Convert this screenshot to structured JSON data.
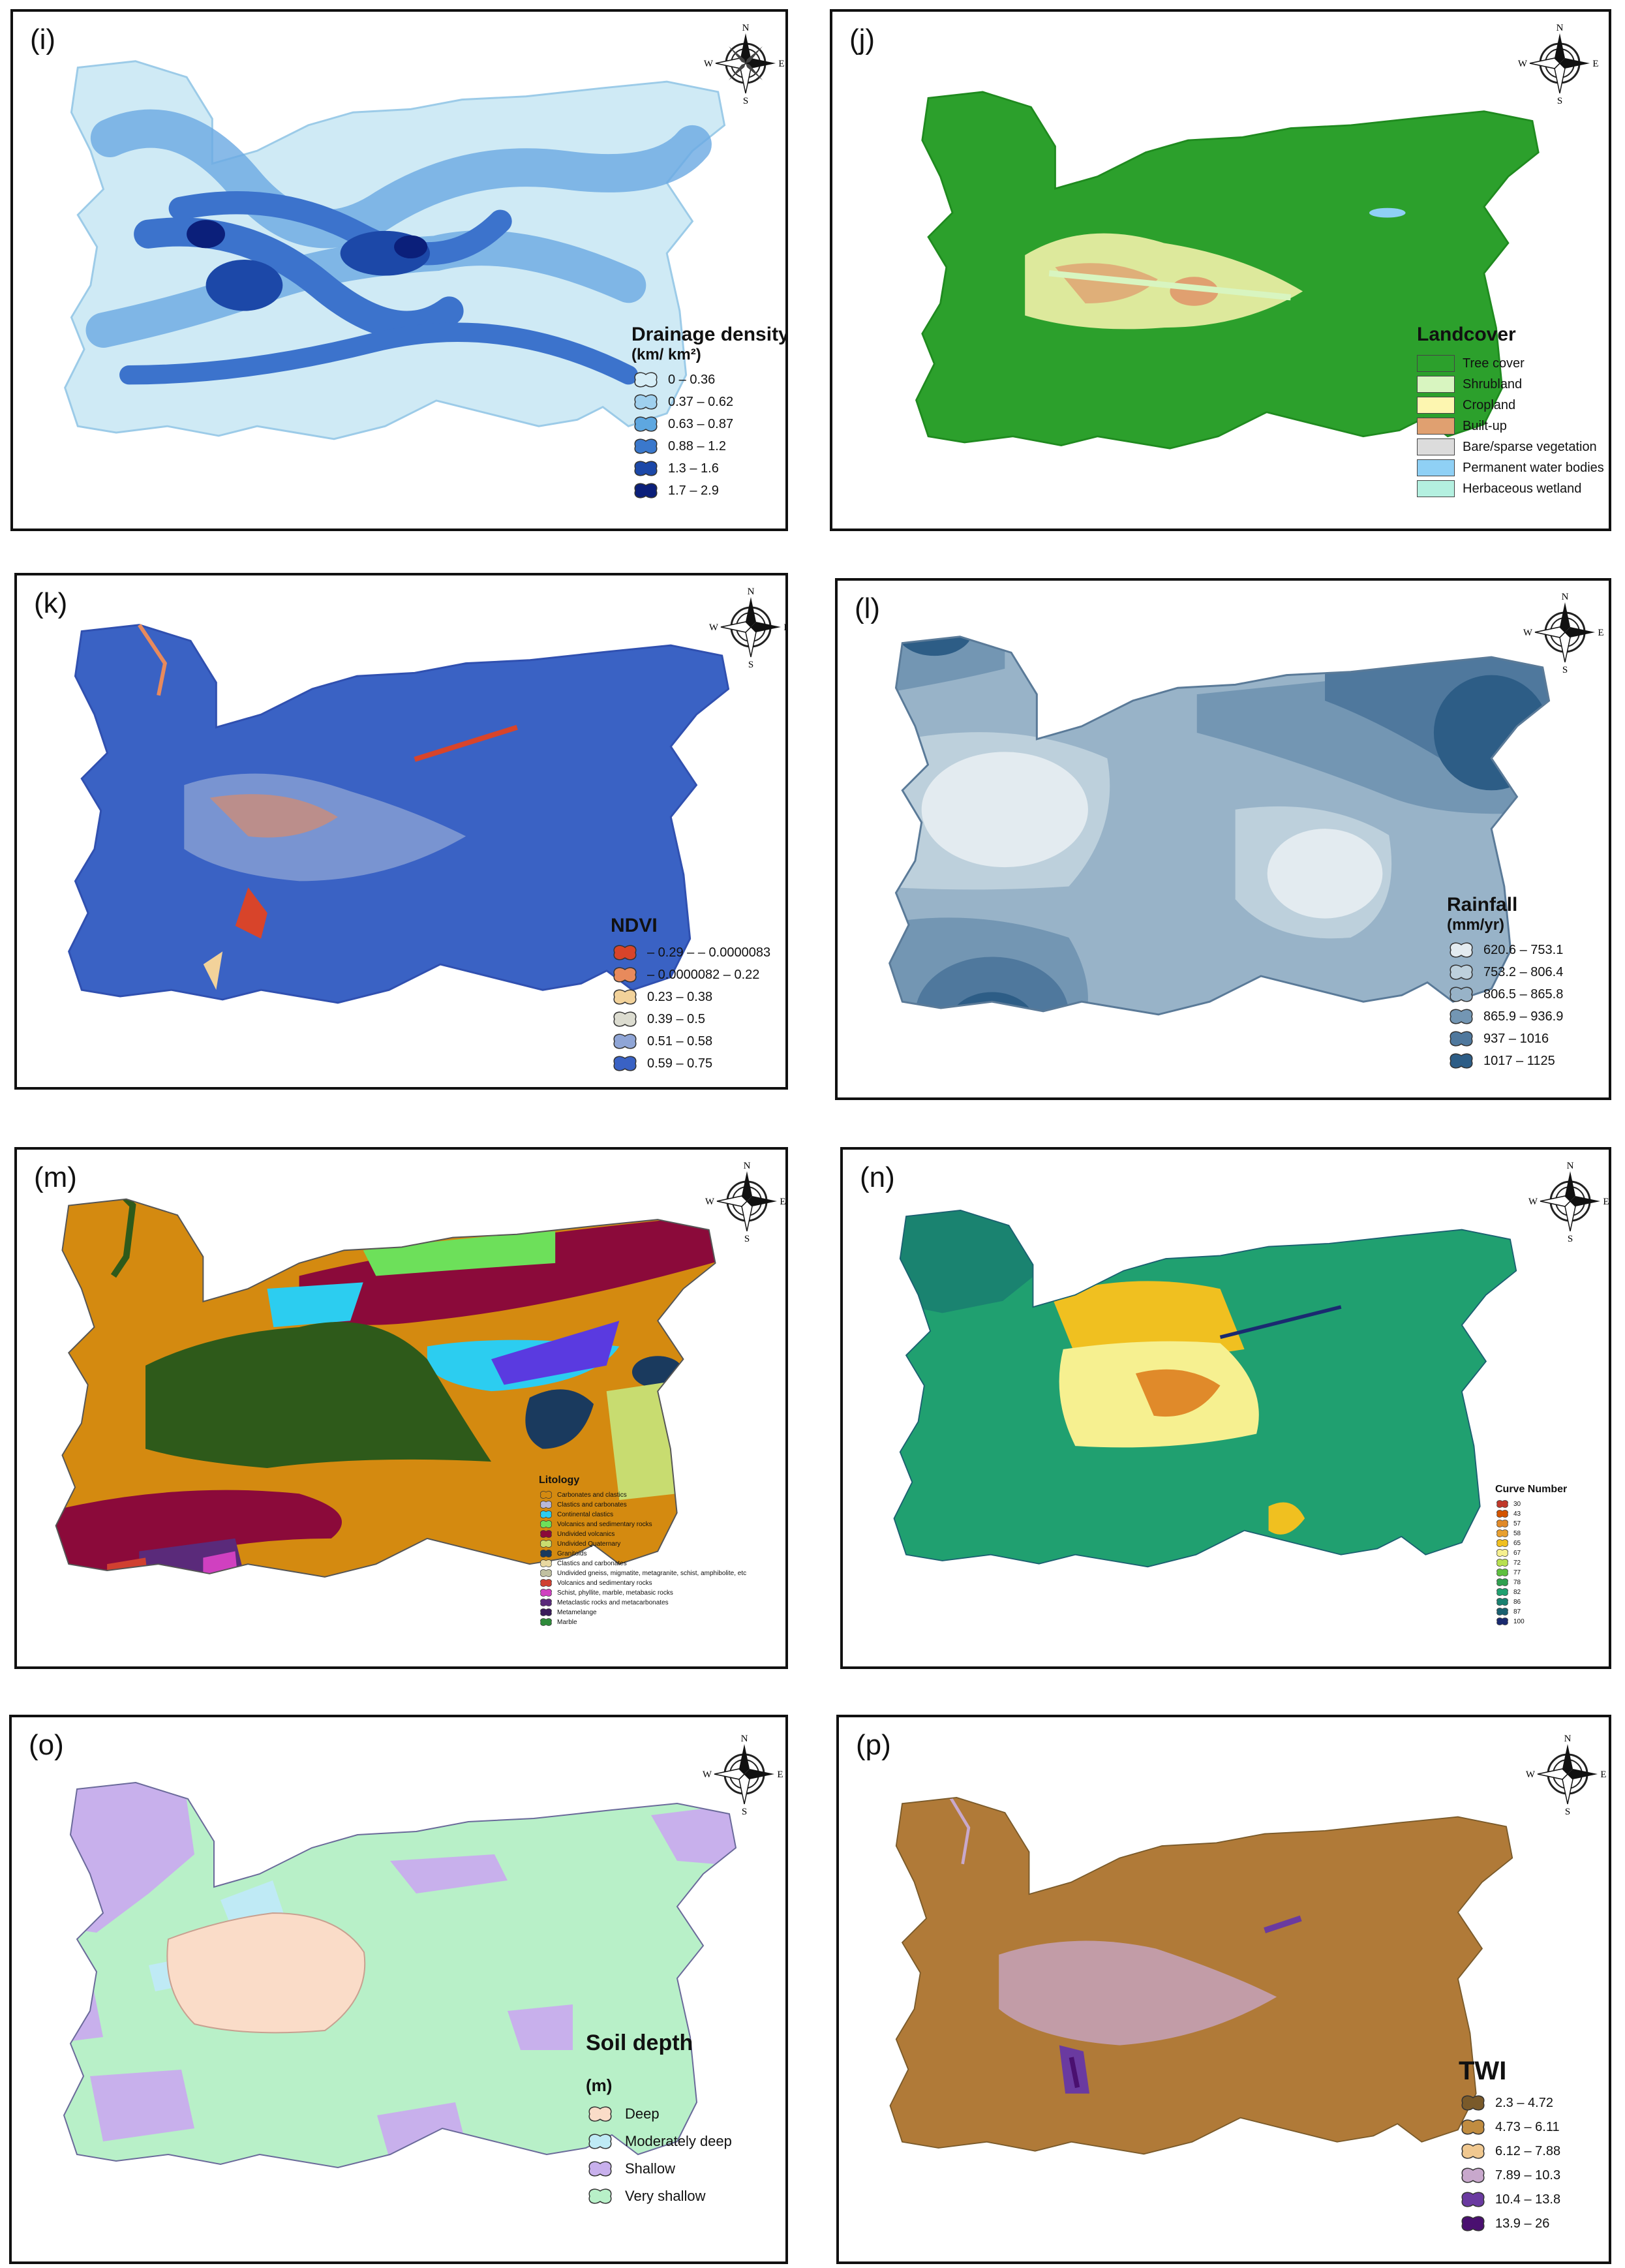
{
  "compass": {
    "n": "N",
    "s": "S",
    "e": "E",
    "w": "W"
  },
  "panels": [
    {
      "tag": "(i)",
      "legend": {
        "title": "Drainage density",
        "unit": "(km/ km²)",
        "items": [
          {
            "label": "0 – 0.36",
            "color": "#d6eef7"
          },
          {
            "label": "0.37 – 0.62",
            "color": "#9fd0ee"
          },
          {
            "label": "0.63 – 0.87",
            "color": "#5ea7e0"
          },
          {
            "label": "0.88 – 1.2",
            "color": "#3a78cc"
          },
          {
            "label": "1.3 – 1.6",
            "color": "#1c48a8"
          },
          {
            "label": "1.7 – 2.9",
            "color": "#0b1f7a"
          }
        ]
      }
    },
    {
      "tag": "(j)",
      "legend": {
        "title": "Landcover",
        "items": [
          {
            "label": "Tree cover",
            "color": "#2ca02c"
          },
          {
            "label": "Shrubland",
            "color": "#d8f5c0"
          },
          {
            "label": "Cropland",
            "color": "#fdf6b0"
          },
          {
            "label": "Built-up",
            "color": "#e0a070"
          },
          {
            "label": "Bare/sparse vegetation",
            "color": "#dcdcdc"
          },
          {
            "label": "Permanent water bodies",
            "color": "#8fd0f5"
          },
          {
            "label": "Herbaceous wetland",
            "color": "#b4f0e0"
          }
        ]
      }
    },
    {
      "tag": "(k)",
      "legend": {
        "title": "NDVI",
        "items": [
          {
            "label": "– 0.29 – – 0.0000083",
            "color": "#d8442a"
          },
          {
            "label": "– 0.0000082 – 0.22",
            "color": "#e88a5c"
          },
          {
            "label": "0.23 – 0.38",
            "color": "#f2d29a"
          },
          {
            "label": "0.39 – 0.5",
            "color": "#dcdcd0"
          },
          {
            "label": "0.51 – 0.58",
            "color": "#8fa5d6"
          },
          {
            "label": "0.59 – 0.75",
            "color": "#3a62c4"
          }
        ]
      }
    },
    {
      "tag": "(l)",
      "legend": {
        "title": "Rainfall",
        "unit": "(mm/yr)",
        "items": [
          {
            "label": "620.6 – 753.1",
            "color": "#e3ebf0"
          },
          {
            "label": "753.2 – 806.4",
            "color": "#bdd0dc"
          },
          {
            "label": "806.5 – 865.8",
            "color": "#98b3c8"
          },
          {
            "label": "865.9 – 936.9",
            "color": "#7396b3"
          },
          {
            "label": "937 – 1016",
            "color": "#4f789d"
          },
          {
            "label": "1017 – 1125",
            "color": "#2d5d86"
          }
        ]
      }
    },
    {
      "tag": "(m)",
      "legend": {
        "title": "Litology",
        "items": [
          {
            "label": "Carbonates and clastics",
            "color": "#d48a10"
          },
          {
            "label": "Clastics and carbonates",
            "color": "#b8b8d8"
          },
          {
            "label": "Continental clastics",
            "color": "#2ccdf0"
          },
          {
            "label": "Volcanics and sedimentary rocks",
            "color": "#6de05a"
          },
          {
            "label": "Undivided volcanics",
            "color": "#8b0a3a"
          },
          {
            "label": "Undivided Quaternary",
            "color": "#c8dc70"
          },
          {
            "label": "Granitoids",
            "color": "#1a3a5e"
          },
          {
            "label": "Clastics and carbonates",
            "color": "#e8d8a0"
          },
          {
            "label": "Undivided gneiss, migmatite, metagranite, schist, amphibolite, etc",
            "color": "#c0c0a0"
          },
          {
            "label": "Volcanics and sedimentary rocks",
            "color": "#d04030"
          },
          {
            "label": "Schist, phyllite, marble, metabasic rocks",
            "color": "#d040c0"
          },
          {
            "label": "Metaclastic rocks and metacarbonates",
            "color": "#5a2a7a"
          },
          {
            "label": "Metamelange",
            "color": "#3a1a5a"
          },
          {
            "label": "Marble",
            "color": "#2e8a3a"
          }
        ]
      }
    },
    {
      "tag": "(n)",
      "legend": {
        "title": "Curve Number",
        "items": [
          {
            "label": "30",
            "color": "#c0392b"
          },
          {
            "label": "43",
            "color": "#d35400"
          },
          {
            "label": "57",
            "color": "#e08a2a"
          },
          {
            "label": "58",
            "color": "#e8a030"
          },
          {
            "label": "65",
            "color": "#f0c020"
          },
          {
            "label": "67",
            "color": "#f6f090"
          },
          {
            "label": "72",
            "color": "#b8e050"
          },
          {
            "label": "77",
            "color": "#60c040"
          },
          {
            "label": "78",
            "color": "#30a050"
          },
          {
            "label": "82",
            "color": "#20a070"
          },
          {
            "label": "86",
            "color": "#1a8070"
          },
          {
            "label": "87",
            "color": "#1a6070"
          },
          {
            "label": "100",
            "color": "#1a2a70"
          }
        ]
      }
    },
    {
      "tag": "(o)",
      "legend": {
        "title": "Soil depth",
        "unit": "(m)",
        "items": [
          {
            "label": "Deep",
            "color": "#fadcc8"
          },
          {
            "label": "Moderately deep",
            "color": "#bfeaf5"
          },
          {
            "label": "Shallow",
            "color": "#c8b0ec"
          },
          {
            "label": "Very shallow",
            "color": "#b8f0c8"
          }
        ]
      }
    },
    {
      "tag": "(p)",
      "legend": {
        "title": "TWI",
        "items": [
          {
            "label": "2.3 – 4.72",
            "color": "#7a5a2a"
          },
          {
            "label": "4.73 – 6.11",
            "color": "#c08c40"
          },
          {
            "label": "6.12 – 7.88",
            "color": "#f0c890"
          },
          {
            "label": "7.89 – 10.3",
            "color": "#c8a8cc"
          },
          {
            "label": "10.4 – 13.8",
            "color": "#6a3aa0"
          },
          {
            "label": "13.9 – 26",
            "color": "#4a1070"
          }
        ]
      }
    }
  ]
}
